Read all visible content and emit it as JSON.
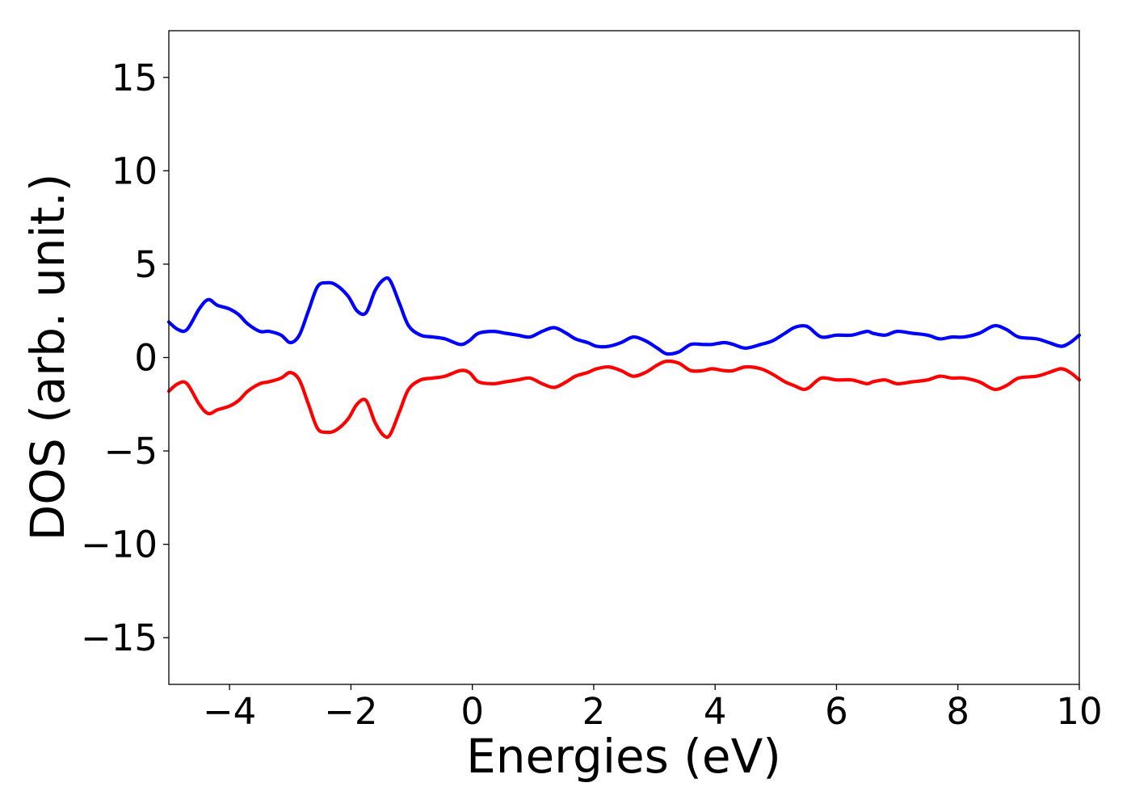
{
  "chart_data": {
    "type": "line",
    "xlabel": "Energies (eV)",
    "ylabel": "DOS (arb. unit.)",
    "xlim": [
      -5,
      10
    ],
    "ylim": [
      -17.5,
      17.5
    ],
    "xticks": [
      -4,
      -2,
      0,
      2,
      4,
      6,
      8,
      10
    ],
    "yticks": [
      -15,
      -10,
      -5,
      0,
      5,
      10,
      15
    ],
    "grid": false,
    "series": [
      {
        "color": "#0000ff",
        "x": [
          -5.0,
          -4.85,
          -4.7,
          -4.5,
          -4.35,
          -4.2,
          -4.0,
          -3.85,
          -3.7,
          -3.5,
          -3.35,
          -3.15,
          -3.0,
          -2.85,
          -2.7,
          -2.55,
          -2.4,
          -2.25,
          -2.05,
          -1.9,
          -1.75,
          -1.6,
          -1.45,
          -1.35,
          -1.2,
          -1.05,
          -0.85,
          -0.65,
          -0.45,
          -0.2,
          -0.05,
          0.1,
          0.35,
          0.55,
          0.75,
          0.95,
          1.15,
          1.35,
          1.55,
          1.7,
          1.9,
          2.05,
          2.25,
          2.45,
          2.65,
          2.85,
          3.05,
          3.2,
          3.4,
          3.6,
          3.8,
          3.95,
          4.15,
          4.3,
          4.5,
          4.75,
          4.95,
          5.15,
          5.3,
          5.45,
          5.55,
          5.75,
          6.0,
          6.25,
          6.5,
          6.6,
          6.8,
          7.0,
          7.25,
          7.5,
          7.7,
          7.9,
          8.1,
          8.35,
          8.6,
          8.8,
          9.0,
          9.3,
          9.5,
          9.7,
          9.85,
          10.0
        ],
        "y": [
          1.9,
          1.5,
          1.5,
          2.6,
          3.1,
          2.8,
          2.6,
          2.3,
          1.8,
          1.4,
          1.4,
          1.2,
          0.8,
          1.2,
          2.5,
          3.8,
          4.0,
          3.9,
          3.3,
          2.5,
          2.4,
          3.6,
          4.2,
          4.1,
          2.9,
          1.7,
          1.2,
          1.1,
          1.0,
          0.7,
          0.9,
          1.3,
          1.4,
          1.3,
          1.2,
          1.1,
          1.4,
          1.6,
          1.3,
          1.0,
          0.8,
          0.6,
          0.6,
          0.8,
          1.1,
          0.9,
          0.5,
          0.2,
          0.3,
          0.7,
          0.7,
          0.7,
          0.8,
          0.7,
          0.5,
          0.7,
          0.9,
          1.3,
          1.6,
          1.7,
          1.6,
          1.1,
          1.2,
          1.2,
          1.4,
          1.3,
          1.2,
          1.4,
          1.3,
          1.2,
          1.0,
          1.1,
          1.1,
          1.3,
          1.7,
          1.5,
          1.1,
          1.0,
          0.8,
          0.6,
          0.8,
          1.2
        ]
      },
      {
        "color": "#ff0000",
        "x": [
          -5.0,
          -4.85,
          -4.7,
          -4.5,
          -4.35,
          -4.2,
          -4.0,
          -3.85,
          -3.7,
          -3.5,
          -3.35,
          -3.15,
          -3.0,
          -2.85,
          -2.7,
          -2.55,
          -2.4,
          -2.25,
          -2.05,
          -1.9,
          -1.75,
          -1.6,
          -1.45,
          -1.35,
          -1.2,
          -1.05,
          -0.85,
          -0.65,
          -0.45,
          -0.2,
          -0.05,
          0.1,
          0.35,
          0.55,
          0.75,
          0.95,
          1.15,
          1.35,
          1.55,
          1.7,
          1.9,
          2.05,
          2.25,
          2.45,
          2.65,
          2.85,
          3.05,
          3.2,
          3.4,
          3.6,
          3.8,
          3.95,
          4.15,
          4.3,
          4.5,
          4.75,
          4.95,
          5.15,
          5.3,
          5.45,
          5.55,
          5.75,
          6.0,
          6.25,
          6.5,
          6.6,
          6.8,
          7.0,
          7.25,
          7.5,
          7.7,
          7.9,
          8.1,
          8.35,
          8.6,
          8.8,
          9.0,
          9.3,
          9.5,
          9.7,
          9.85,
          10.0
        ],
        "y": [
          -1.8,
          -1.4,
          -1.4,
          -2.5,
          -3.0,
          -2.8,
          -2.6,
          -2.3,
          -1.8,
          -1.4,
          -1.3,
          -1.1,
          -0.8,
          -1.2,
          -2.5,
          -3.8,
          -4.0,
          -3.9,
          -3.3,
          -2.5,
          -2.3,
          -3.5,
          -4.2,
          -4.1,
          -2.9,
          -1.7,
          -1.2,
          -1.1,
          -1.0,
          -0.7,
          -0.8,
          -1.3,
          -1.4,
          -1.3,
          -1.2,
          -1.1,
          -1.4,
          -1.6,
          -1.3,
          -1.0,
          -0.8,
          -0.6,
          -0.5,
          -0.7,
          -1.0,
          -0.8,
          -0.4,
          -0.2,
          -0.3,
          -0.7,
          -0.7,
          -0.6,
          -0.7,
          -0.7,
          -0.5,
          -0.6,
          -0.9,
          -1.3,
          -1.5,
          -1.7,
          -1.6,
          -1.1,
          -1.2,
          -1.2,
          -1.4,
          -1.3,
          -1.2,
          -1.4,
          -1.3,
          -1.2,
          -1.0,
          -1.1,
          -1.1,
          -1.3,
          -1.7,
          -1.5,
          -1.1,
          -1.0,
          -0.8,
          -0.6,
          -0.8,
          -1.2
        ]
      }
    ]
  }
}
